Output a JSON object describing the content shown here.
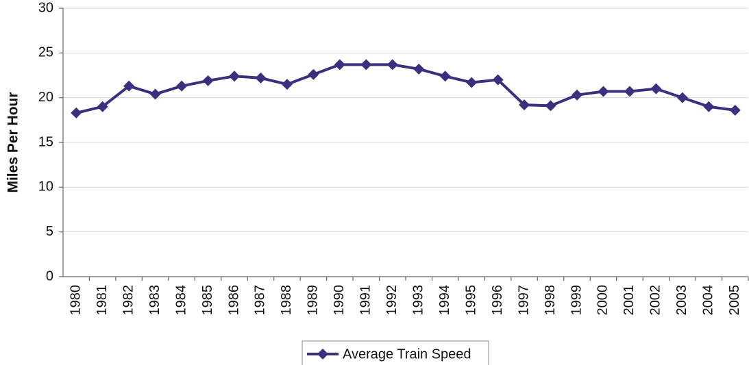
{
  "chart_data": {
    "type": "line",
    "y_label": "Miles Per Hour",
    "categories": [
      "1980",
      "1981",
      "1982",
      "1983",
      "1984",
      "1985",
      "1986",
      "1987",
      "1988",
      "1989",
      "1990",
      "1991",
      "1992",
      "1993",
      "1994",
      "1995",
      "1996",
      "1997",
      "1998",
      "1999",
      "2000",
      "2001",
      "2002",
      "2003",
      "2004",
      "2005"
    ],
    "series": [
      {
        "name": "Average Train Speed",
        "color": "#3b2f7e",
        "values": [
          18.3,
          19.0,
          21.3,
          20.4,
          21.3,
          21.9,
          22.4,
          22.2,
          21.5,
          22.6,
          23.7,
          23.7,
          23.7,
          23.2,
          22.4,
          21.7,
          22.0,
          19.2,
          19.1,
          20.3,
          20.7,
          20.7,
          21.0,
          20.0,
          19.0,
          18.6
        ]
      }
    ],
    "ylim": [
      0,
      30
    ],
    "yticks": [
      0,
      5,
      10,
      15,
      20,
      25,
      30
    ],
    "grid": true,
    "legend": "bottom"
  }
}
